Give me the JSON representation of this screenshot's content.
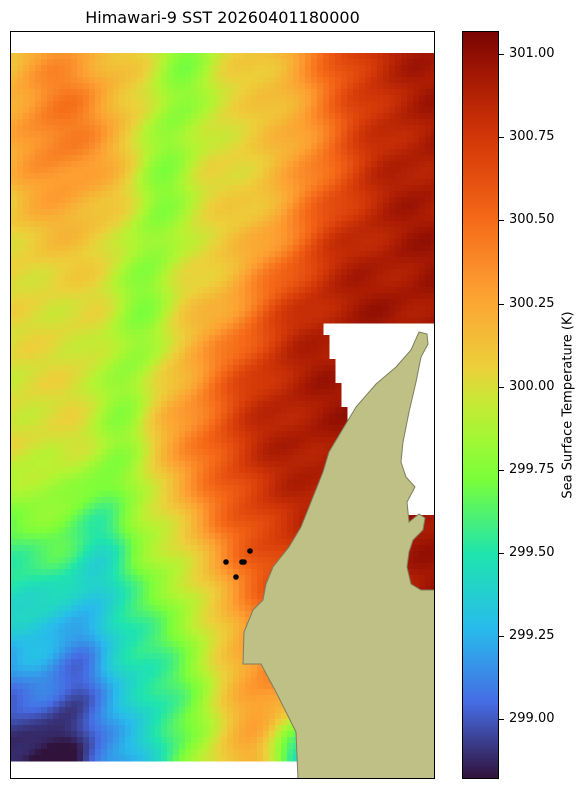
{
  "chart_data": {
    "type": "heatmap",
    "title": "Himawari-9 SST 20260401180000",
    "colorbar": {
      "label": "Sea Surface Temperature (K)",
      "range": [
        298.82,
        301.07
      ],
      "ticks": [
        "299.00",
        "299.25",
        "299.50",
        "299.75",
        "300.00",
        "300.25",
        "300.50",
        "300.75",
        "301.00"
      ],
      "tick_values": [
        299.0,
        299.25,
        299.5,
        299.75,
        300.0,
        300.25,
        300.5,
        300.75,
        301.0
      ],
      "colormap": "turbo"
    },
    "grid": false,
    "land_color": "#bfc085",
    "land_edge_color": "#7d7d5f",
    "no_data_color": "#ffffff",
    "markers": {
      "color": "#000000",
      "count": 5
    },
    "field_description": "Warm (~300.6-301.0 K) water in north-east; cooler (~300.0 K) green band along west; cold (~299.0-299.4 K) water in south-west; land peninsula on east side"
  }
}
